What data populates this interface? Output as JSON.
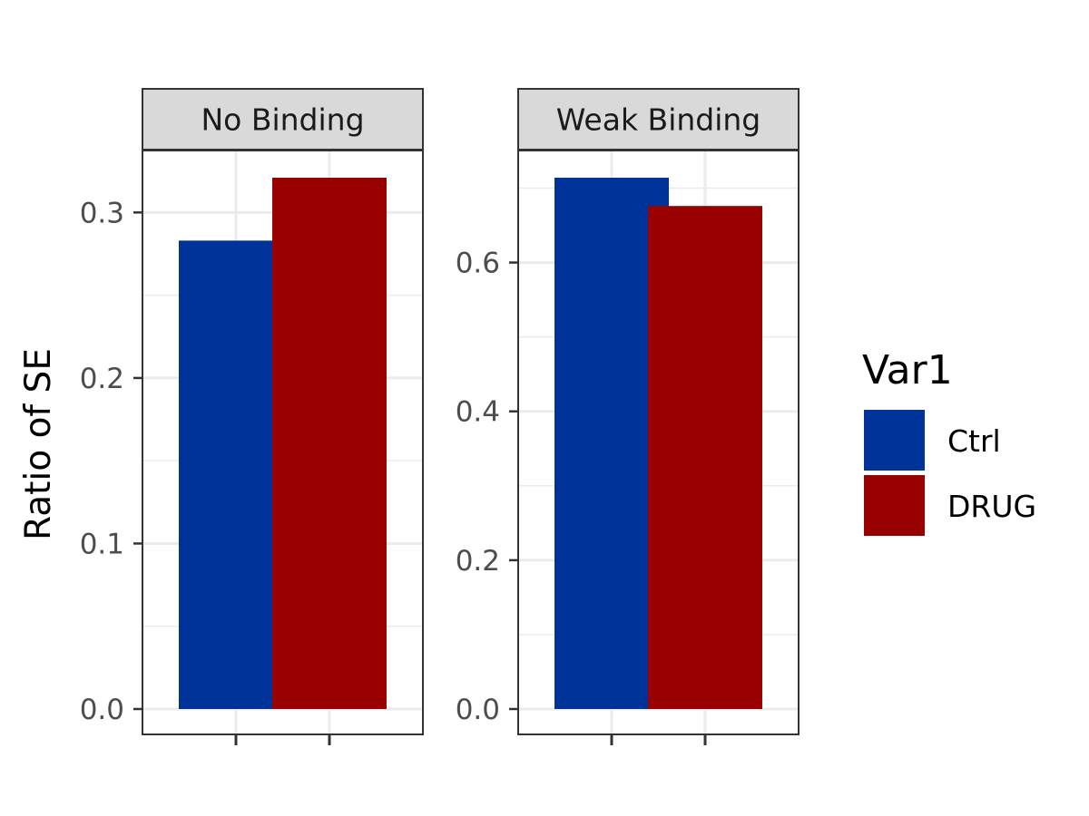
{
  "chart_data": {
    "type": "bar",
    "ylabel": "Ratio of SE",
    "xlabel": "",
    "categories": [
      "Ctrl",
      "DRUG"
    ],
    "facets": [
      {
        "name": "No Binding",
        "ylim": [
          0,
          0.335
        ],
        "yticks": [
          0.0,
          0.1,
          0.2,
          0.3
        ],
        "ytick_labels": [
          "0.0",
          "0.1",
          "0.2",
          "0.3"
        ],
        "values": [
          0.283,
          0.321
        ]
      },
      {
        "name": "Weak Binding",
        "ylim": [
          0,
          0.75
        ],
        "yticks": [
          0.0,
          0.2,
          0.4,
          0.6
        ],
        "ytick_labels": [
          "0.0",
          "0.2",
          "0.4",
          "0.6"
        ],
        "values": [
          0.714,
          0.676
        ]
      }
    ],
    "legend": {
      "title": "Var1",
      "placement": "right",
      "entries": [
        {
          "label": "Ctrl",
          "color": "#003399"
        },
        {
          "label": "DRUG",
          "color": "#990000"
        }
      ]
    },
    "grid": true,
    "x_tick_labels_visible": false
  }
}
